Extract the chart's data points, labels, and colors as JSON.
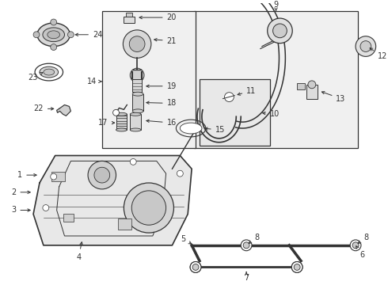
{
  "bg_color": "#ffffff",
  "line_color": "#333333",
  "box_fill": "#f0f0f0",
  "fig_width": 4.9,
  "fig_height": 3.6,
  "dpi": 100
}
